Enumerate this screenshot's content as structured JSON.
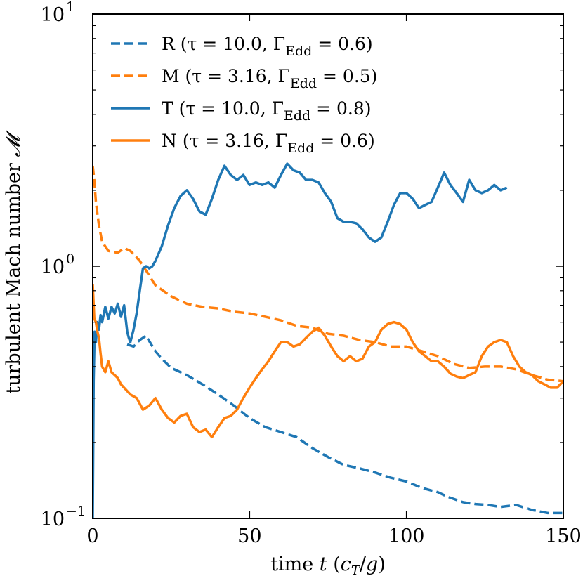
{
  "chart_data": {
    "type": "line",
    "xlabel": "time t (c_T/g)",
    "ylabel": "turbulent Mach number 𝓜",
    "xlim": [
      0,
      150
    ],
    "ylim": [
      0.1,
      10
    ],
    "yscale": "log",
    "x_ticks": [
      {
        "value": 0,
        "label": "0"
      },
      {
        "value": 50,
        "label": "50"
      },
      {
        "value": 100,
        "label": "100"
      },
      {
        "value": 150,
        "label": "150"
      }
    ],
    "y_ticks": [
      {
        "value": 0.1,
        "base": "10",
        "exp": "−1"
      },
      {
        "value": 1,
        "base": "10",
        "exp": "0"
      },
      {
        "value": 10,
        "base": "10",
        "exp": "1"
      }
    ],
    "legend_position": "top-left",
    "series": [
      {
        "name": "R",
        "legend": "R (τ = 10.0, Γ",
        "legend_sub": "Edd",
        "legend_end": " = 0.6)",
        "color": "#1f77b4",
        "style": "dashed",
        "x": [
          11,
          13,
          15,
          17,
          20,
          22,
          25,
          30,
          35,
          40,
          45,
          50,
          55,
          60,
          65,
          70,
          75,
          80,
          85,
          90,
          95,
          100,
          105,
          110,
          113,
          118,
          122,
          126,
          130,
          135,
          140,
          145,
          150
        ],
        "y": [
          0.49,
          0.48,
          0.51,
          0.53,
          0.46,
          0.43,
          0.395,
          0.37,
          0.34,
          0.31,
          0.28,
          0.25,
          0.23,
          0.22,
          0.21,
          0.19,
          0.175,
          0.163,
          0.158,
          0.152,
          0.145,
          0.14,
          0.132,
          0.127,
          0.122,
          0.116,
          0.114,
          0.113,
          0.111,
          0.113,
          0.108,
          0.105,
          0.105
        ]
      },
      {
        "name": "M",
        "legend": "M (τ = 3.16, Γ",
        "legend_sub": "Edd",
        "legend_end": " = 0.5)",
        "color": "#ff7f0e",
        "style": "dashed",
        "x": [
          0,
          0.5,
          1,
          2,
          3,
          5,
          8,
          10,
          12,
          15,
          18,
          20,
          25,
          30,
          35,
          40,
          45,
          50,
          55,
          60,
          65,
          70,
          75,
          80,
          85,
          90,
          95,
          100,
          105,
          110,
          115,
          120,
          125,
          130,
          135,
          140,
          145,
          150
        ],
        "y": [
          2.5,
          2.2,
          1.8,
          1.45,
          1.25,
          1.15,
          1.13,
          1.18,
          1.15,
          1.05,
          0.92,
          0.84,
          0.76,
          0.71,
          0.69,
          0.68,
          0.66,
          0.65,
          0.63,
          0.61,
          0.58,
          0.57,
          0.54,
          0.53,
          0.51,
          0.5,
          0.48,
          0.48,
          0.46,
          0.44,
          0.41,
          0.395,
          0.4,
          0.4,
          0.39,
          0.37,
          0.355,
          0.35
        ]
      },
      {
        "name": "T",
        "legend": "T (τ = 10.0, Γ",
        "legend_sub": "Edd",
        "legend_end": " = 0.8)",
        "color": "#1f77b4",
        "style": "solid",
        "x": [
          0,
          0.3,
          0.6,
          1,
          1.5,
          2,
          2.5,
          3,
          4,
          5,
          6,
          7,
          8,
          9,
          10,
          11,
          11.5,
          12,
          13,
          14,
          15,
          16,
          17,
          18,
          19,
          20,
          22,
          24,
          26,
          28,
          30,
          32,
          34,
          36,
          38,
          40,
          42,
          44,
          46,
          48,
          50,
          52,
          54,
          56,
          58,
          60,
          62,
          64,
          66,
          68,
          70,
          72,
          74,
          76,
          78,
          80,
          82,
          84,
          86,
          88,
          90,
          92,
          94,
          96,
          98,
          100,
          102,
          104,
          106,
          108,
          110,
          112,
          114,
          116,
          118,
          120,
          122,
          124,
          126,
          128,
          130,
          132
        ],
        "y": [
          0.1,
          0.35,
          0.55,
          0.5,
          0.6,
          0.56,
          0.64,
          0.6,
          0.69,
          0.62,
          0.69,
          0.65,
          0.71,
          0.63,
          0.7,
          0.55,
          0.52,
          0.5,
          0.56,
          0.65,
          0.8,
          0.98,
          1.0,
          0.98,
          1.0,
          1.05,
          1.2,
          1.45,
          1.7,
          1.9,
          2.0,
          1.85,
          1.65,
          1.6,
          1.85,
          2.2,
          2.5,
          2.3,
          2.2,
          2.3,
          2.1,
          2.15,
          2.1,
          2.15,
          2.05,
          2.3,
          2.55,
          2.4,
          2.35,
          2.2,
          2.2,
          2.15,
          1.95,
          1.8,
          1.55,
          1.5,
          1.5,
          1.48,
          1.4,
          1.3,
          1.25,
          1.3,
          1.5,
          1.75,
          1.95,
          1.95,
          1.85,
          1.7,
          1.75,
          1.8,
          2.05,
          2.35,
          2.1,
          1.95,
          1.8,
          2.2,
          2.0,
          1.95,
          2.0,
          2.1,
          2.0,
          2.05
        ]
      },
      {
        "name": "N",
        "legend": "N (τ = 3.16, Γ",
        "legend_sub": "Edd",
        "legend_end": " = 0.6)",
        "color": "#ff7f0e",
        "style": "solid",
        "x": [
          0,
          0.5,
          1,
          1.5,
          2,
          2.5,
          3,
          4,
          5,
          6,
          7,
          8,
          9,
          10,
          12,
          14,
          16,
          18,
          20,
          22,
          24,
          26,
          28,
          30,
          32,
          34,
          36,
          38,
          40,
          42,
          44,
          46,
          48,
          50,
          52,
          54,
          56,
          58,
          60,
          62,
          64,
          66,
          68,
          70,
          72,
          74,
          76,
          78,
          80,
          82,
          84,
          86,
          88,
          90,
          92,
          94,
          96,
          98,
          100,
          102,
          104,
          106,
          108,
          110,
          112,
          114,
          116,
          118,
          120,
          122,
          124,
          126,
          128,
          130,
          132,
          134,
          136,
          138,
          140,
          142,
          144,
          146,
          148,
          150
        ],
        "y": [
          0.85,
          0.62,
          0.6,
          0.55,
          0.52,
          0.45,
          0.4,
          0.38,
          0.42,
          0.38,
          0.37,
          0.36,
          0.34,
          0.33,
          0.31,
          0.3,
          0.27,
          0.28,
          0.3,
          0.27,
          0.25,
          0.24,
          0.255,
          0.26,
          0.23,
          0.22,
          0.225,
          0.21,
          0.23,
          0.25,
          0.255,
          0.27,
          0.3,
          0.33,
          0.36,
          0.39,
          0.42,
          0.46,
          0.5,
          0.5,
          0.48,
          0.49,
          0.52,
          0.55,
          0.57,
          0.53,
          0.48,
          0.44,
          0.42,
          0.44,
          0.42,
          0.43,
          0.48,
          0.5,
          0.56,
          0.59,
          0.6,
          0.59,
          0.56,
          0.5,
          0.46,
          0.44,
          0.42,
          0.42,
          0.4,
          0.375,
          0.365,
          0.36,
          0.37,
          0.38,
          0.44,
          0.48,
          0.5,
          0.51,
          0.5,
          0.44,
          0.4,
          0.38,
          0.37,
          0.35,
          0.34,
          0.33,
          0.33,
          0.35
        ]
      }
    ]
  }
}
